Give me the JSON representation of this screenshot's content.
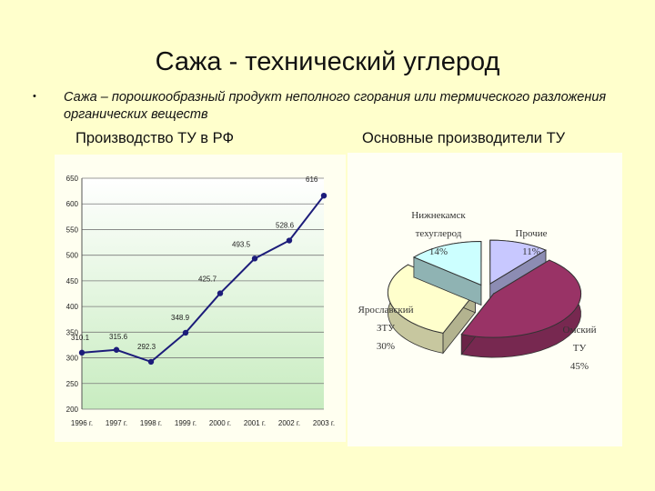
{
  "slide": {
    "title": "Сажа - технический углерод",
    "bullet": "Сажа – порошкообразный продукт неполного сгорания или термического разложения органических веществ",
    "left_subtitle": "Производство ТУ в РФ",
    "right_subtitle": "Основные производители ТУ"
  },
  "chart_data": [
    {
      "type": "line",
      "categories": [
        "1996 г.",
        "1997 г.",
        "1998 г.",
        "1999 г.",
        "2000 г.",
        "2001 г.",
        "2002 г.",
        "2003 г."
      ],
      "values": [
        310.1,
        315.6,
        292.3,
        348.9,
        425.7,
        493.5,
        528.6,
        616
      ],
      "value_labels": [
        "310.1",
        "315.6",
        "292.3",
        "348.9",
        "425.7",
        "493.5",
        "528.6",
        "616"
      ],
      "yticks": [
        "200",
        "250",
        "300",
        "350",
        "400",
        "450",
        "500",
        "550",
        "600",
        "650"
      ],
      "ylim": [
        200,
        650
      ],
      "grid": true,
      "colors": {
        "line": "#1c1c7a",
        "marker": "#1c1c7a",
        "plot_top": "#ffffff",
        "plot_bottom": "#c8ecc0",
        "grid": "#7a7a7a"
      }
    },
    {
      "type": "pie",
      "slices": [
        {
          "label_lines": [
            "Прочие",
            "11%"
          ],
          "value": 11,
          "color": "#c8c8ff"
        },
        {
          "label_lines": [
            "Омский",
            "ТУ",
            "45%"
          ],
          "value": 45,
          "color": "#993366"
        },
        {
          "label_lines": [
            "Ярославский",
            "ЗТУ",
            "30%"
          ],
          "value": 30,
          "color": "#ffffcc"
        },
        {
          "label_lines": [
            "Нижнекамск",
            "техуглерод",
            "14%"
          ],
          "value": 14,
          "color": "#ccffff"
        }
      ]
    }
  ]
}
